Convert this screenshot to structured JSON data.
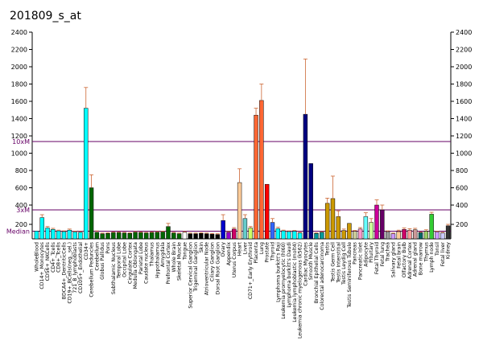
{
  "chart_data": {
    "type": "bar",
    "title": "201809_s_at",
    "y_ticks": [
      200,
      400,
      600,
      800,
      1000,
      1200,
      1400,
      1600,
      1800,
      2000,
      2200,
      2400
    ],
    "ylim": [
      0,
      2400
    ],
    "reference_lines": [
      {
        "label": "10xM",
        "color": "#660066"
      },
      {
        "label": "3xM",
        "color": "#660066"
      },
      {
        "label": "Median",
        "color": "#660066"
      }
    ],
    "categories": [
      "WholeBlood",
      "CD14+_Monocytes",
      "CD56+_NKCells",
      "CD4+_Tcells",
      "CD8+_Tcells",
      "BDCA4+_DentriticCells",
      "CD19+_BCells(neg._sel.)",
      "721_B_lymphoblasts",
      "CD105+_Endothelial",
      "CD34+",
      "Cerebellum Peduncles",
      "Cerebellum",
      "Globus Pallidus",
      "Pons",
      "Subthalamic Nucleus",
      "Temporal Lobe",
      "Occipital Lobe",
      "Cingulate Cortex",
      "Medulla Oblongata",
      "Parietal Lobe",
      "Caudate nucleus",
      "Thalamus",
      "Hypothalamus",
      "Amygdala",
      "Prefrontal Cortex",
      "Whole Brain",
      "Skeletal Muscle",
      "Tongue",
      "Superior Cervical Ganglion",
      "Trigeminal Ganglion",
      "Skin",
      "Atrioventricular Node",
      "Ciliary Ganglion",
      "Dorsal Root Ganglion",
      "Ovary",
      "Appendix",
      "Uterus Corpus",
      "Heart",
      "Liver",
      "CD71+_Early Erythroid",
      "Placenta",
      "Lung",
      "Prostate",
      "Thyroid",
      "Lymphoma burkitt's Raji",
      "Leukemia promyelocytic (hl60)",
      "Lymphoma burkitt's Daudi",
      "Leukemia lymphoblastic (molt4)",
      "Leukemia chronic myelogenous (k562)",
      "Cardiac Myocytes",
      "Smooth Muscle",
      "Bronchial Epithelial Cells",
      "Colorectal adenocarcinoma",
      "Testis",
      "Testis Germ Cell",
      "Testis Interstitial",
      "Testis Leydig Cell",
      "Testis Seminiferous Tubule",
      "Pancreas",
      "Pancreatic Islet",
      "Adipocyte",
      "Pituitary",
      "Fetal Thyroid",
      "Fetal lung",
      "Trachea",
      "Salivary gland",
      "Fetal brain",
      "Olfactory Bulb",
      "Adrenal Cortex",
      "Adrenal gland",
      "Bone marrow",
      "Thymus",
      "Lymph node",
      "Tonsil",
      "Fetal liver",
      "Kidney"
    ],
    "values": [
      107,
      270,
      150,
      130,
      110,
      100,
      120,
      95,
      90,
      1520,
      600,
      90,
      70,
      75,
      85,
      85,
      80,
      75,
      90,
      85,
      80,
      85,
      90,
      95,
      170,
      80,
      70,
      90,
      70,
      70,
      75,
      70,
      65,
      60,
      240,
      90,
      135,
      660,
      260,
      150,
      1440,
      1610,
      640,
      220,
      140,
      110,
      100,
      105,
      80,
      1450,
      880,
      75,
      90,
      420,
      475,
      280,
      115,
      210,
      105,
      135,
      280,
      220,
      400,
      350,
      100,
      70,
      100,
      130,
      120,
      125,
      85,
      105,
      305,
      95,
      80,
      180
    ],
    "errors": [
      0,
      30,
      20,
      15,
      10,
      10,
      15,
      10,
      10,
      240,
      150,
      20,
      10,
      10,
      10,
      10,
      10,
      10,
      10,
      10,
      10,
      10,
      10,
      10,
      40,
      10,
      10,
      10,
      10,
      10,
      10,
      10,
      10,
      10,
      60,
      10,
      20,
      160,
      40,
      20,
      80,
      190,
      0,
      40,
      20,
      10,
      10,
      10,
      10,
      640,
      0,
      10,
      10,
      60,
      260,
      60,
      20,
      0,
      10,
      20,
      40,
      40,
      60,
      50,
      10,
      10,
      20,
      20,
      20,
      20,
      10,
      20,
      20,
      10,
      10,
      20
    ],
    "colors": [
      "#00ffff",
      "#00ffff",
      "#00ffff",
      "#00ffff",
      "#00ffff",
      "#00ffff",
      "#00ffff",
      "#00ffff",
      "#00ffff",
      "#00ffff",
      "#006600",
      "#006600",
      "#006600",
      "#006600",
      "#006600",
      "#006600",
      "#006600",
      "#006600",
      "#006600",
      "#006600",
      "#006600",
      "#006600",
      "#006600",
      "#006600",
      "#006600",
      "#006600",
      "#006600",
      "#ffffff",
      "#000000",
      "#000000",
      "#000000",
      "#000000",
      "#000000",
      "#000000",
      "#0000cc",
      "#9900cc",
      "#cc0066",
      "#ffcc99",
      "#66cccc",
      "#ccff66",
      "#ff6633",
      "#ff6633",
      "#ff0000",
      "#3366ff",
      "#00ffff",
      "#00ffff",
      "#00ffff",
      "#00ffff",
      "#00ffff",
      "#000080",
      "#000080",
      "#009999",
      "#009999",
      "#cc9900",
      "#cc9900",
      "#cc9900",
      "#cc9900",
      "#cc9900",
      "#cccc99",
      "#ff99cc",
      "#66ffff",
      "#ccff99",
      "#cc0099",
      "#660066",
      "#999999",
      "#cc99ff",
      "#ffcc99",
      "#cc0066",
      "#ff9999",
      "#cc9999",
      "#006666",
      "#99cc66",
      "#33cc33",
      "#cc99ff",
      "#ccccff",
      "#333333"
    ]
  }
}
